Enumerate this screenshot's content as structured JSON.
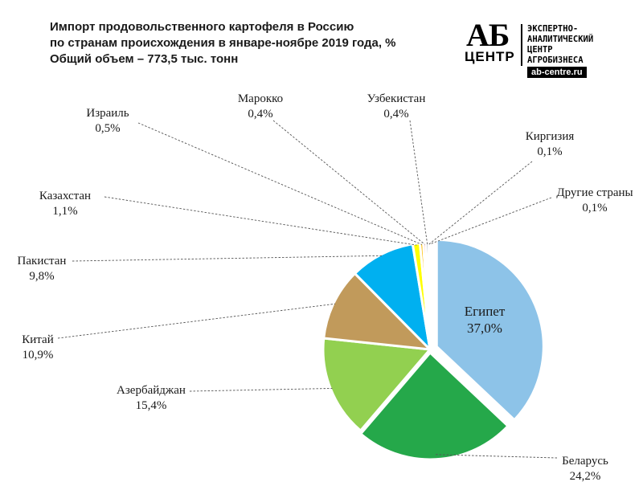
{
  "title_lines": [
    "Импорт продовольственного  картофеля  в Россию",
    "по странам происхождения  в январе-ноябре  2019 года, %",
    "Общий объем – 773,5 тыс. тонн"
  ],
  "logo": {
    "mark": "АБ",
    "mark_sub": "ЦЕНТР",
    "lines": [
      "ЭКСПЕРТНО-",
      "АНАЛИТИЧЕСКИЙ",
      "ЦЕНТР",
      "АГРОБИЗНЕСА"
    ],
    "url": "ab-centre.ru"
  },
  "chart_data": {
    "type": "pie",
    "unit": "%",
    "slices": [
      {
        "label": "Египет",
        "value": 37.0,
        "value_text": "37,0%",
        "color": "#8dc3e8"
      },
      {
        "label": "Беларусь",
        "value": 24.2,
        "value_text": "24,2%",
        "color": "#25a84a"
      },
      {
        "label": "Азербайджан",
        "value": 15.4,
        "value_text": "15,4%",
        "color": "#92d050"
      },
      {
        "label": "Китай",
        "value": 10.9,
        "value_text": "10,9%",
        "color": "#c19a5b"
      },
      {
        "label": "Пакистан",
        "value": 9.8,
        "value_text": "9,8%",
        "color": "#00b0f0"
      },
      {
        "label": "Казахстан",
        "value": 1.1,
        "value_text": "1,1%",
        "color": "#ffff00"
      },
      {
        "label": "Израиль",
        "value": 0.5,
        "value_text": "0,5%",
        "color": "#ffc000"
      },
      {
        "label": "Марокко",
        "value": 0.4,
        "value_text": "0,4%",
        "color": "#c00000"
      },
      {
        "label": "Узбекистан",
        "value": 0.4,
        "value_text": "0,4%",
        "color": "#1f3864"
      },
      {
        "label": "Киргизия",
        "value": 0.1,
        "value_text": "0,1%",
        "color": "#7f6000"
      },
      {
        "label": "Другие страны",
        "value": 0.1,
        "value_text": "0,1%",
        "color": "#404040"
      }
    ],
    "legend": "none"
  }
}
